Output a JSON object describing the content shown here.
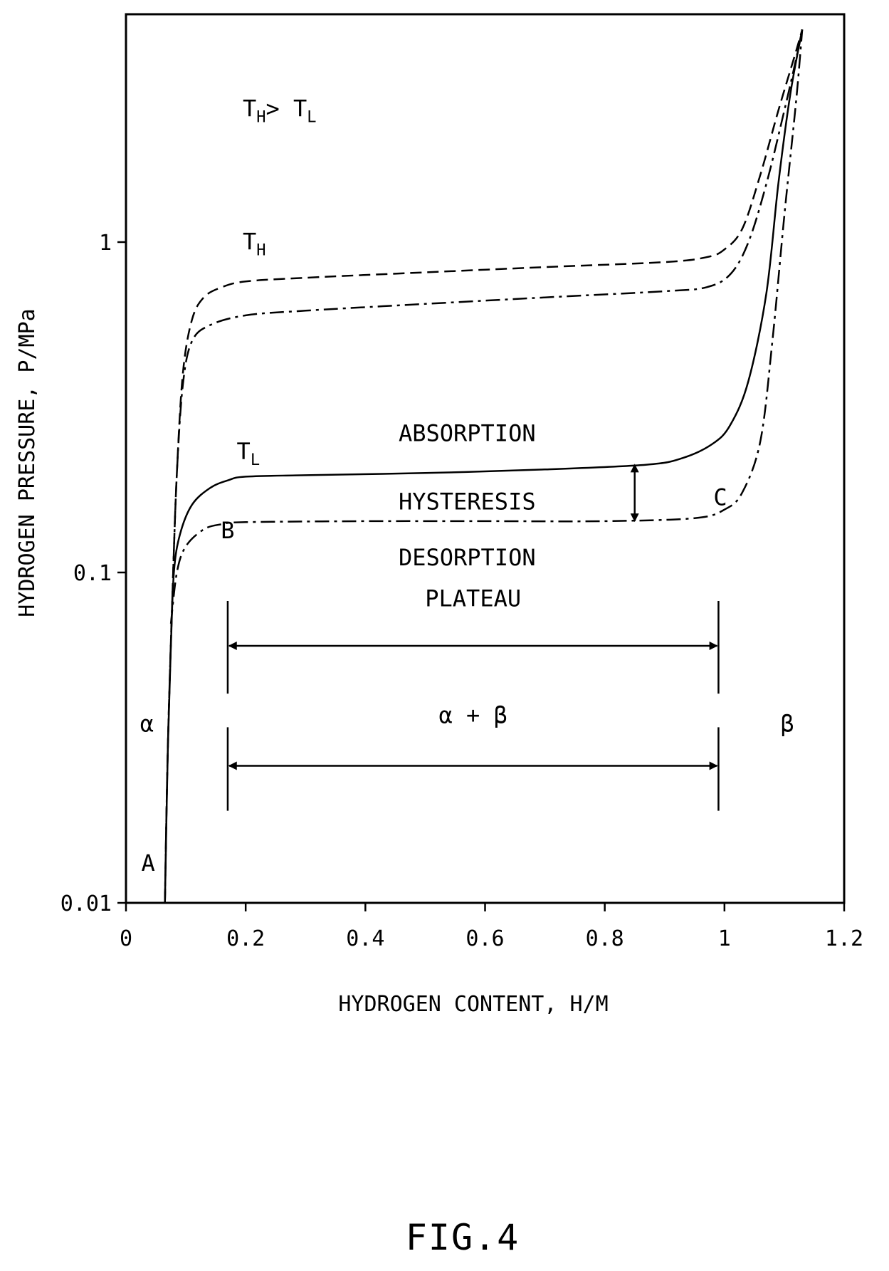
{
  "chart_data": {
    "type": "line",
    "title": "",
    "xlabel": "HYDROGEN CONTENT, H/M",
    "ylabel": "HYDROGEN PRESSURE, P/MPa",
    "xlim": [
      0,
      1.2
    ],
    "ylim": [
      0.01,
      4.4
    ],
    "yscale": "log",
    "grid": false,
    "legend": "none",
    "x_ticks": [
      0,
      0.2,
      0.4,
      0.6,
      0.8,
      1,
      1.2
    ],
    "x_tick_labels": [
      "0",
      "0.2",
      "0.4",
      "0.6",
      "0.8",
      "1",
      "1.2"
    ],
    "y_ticks": [
      0.01,
      0.1,
      1
    ],
    "y_tick_labels": [
      "0.01",
      "0.1",
      "1"
    ],
    "series": [
      {
        "style": "dashed",
        "points": [
          [
            0.065,
            0.01
          ],
          [
            0.07,
            0.03
          ],
          [
            0.078,
            0.09
          ],
          [
            0.085,
            0.2
          ],
          [
            0.095,
            0.4
          ],
          [
            0.11,
            0.58
          ],
          [
            0.13,
            0.68
          ],
          [
            0.16,
            0.73
          ],
          [
            0.2,
            0.76
          ],
          [
            0.3,
            0.78
          ],
          [
            0.5,
            0.81
          ],
          [
            0.7,
            0.84
          ],
          [
            0.9,
            0.87
          ],
          [
            0.97,
            0.9
          ],
          [
            1.0,
            0.95
          ],
          [
            1.03,
            1.1
          ],
          [
            1.06,
            1.6
          ],
          [
            1.09,
            2.5
          ],
          [
            1.12,
            3.8
          ],
          [
            1.13,
            4.4
          ]
        ]
      },
      {
        "style": "dash-dot",
        "points": [
          [
            0.065,
            0.01
          ],
          [
            0.07,
            0.03
          ],
          [
            0.078,
            0.09
          ],
          [
            0.085,
            0.2
          ],
          [
            0.095,
            0.37
          ],
          [
            0.11,
            0.5
          ],
          [
            0.14,
            0.56
          ],
          [
            0.2,
            0.6
          ],
          [
            0.3,
            0.62
          ],
          [
            0.5,
            0.65
          ],
          [
            0.7,
            0.68
          ],
          [
            0.9,
            0.71
          ],
          [
            0.97,
            0.73
          ],
          [
            1.01,
            0.8
          ],
          [
            1.04,
            1.0
          ],
          [
            1.07,
            1.5
          ],
          [
            1.1,
            2.5
          ],
          [
            1.12,
            3.6
          ],
          [
            1.13,
            4.4
          ]
        ]
      },
      {
        "style": "solid",
        "points": [
          [
            0.065,
            0.01
          ],
          [
            0.07,
            0.03
          ],
          [
            0.075,
            0.06
          ],
          [
            0.08,
            0.1
          ],
          [
            0.09,
            0.13
          ],
          [
            0.11,
            0.16
          ],
          [
            0.14,
            0.18
          ],
          [
            0.17,
            0.19
          ],
          [
            0.2,
            0.195
          ],
          [
            0.3,
            0.197
          ],
          [
            0.5,
            0.2
          ],
          [
            0.7,
            0.205
          ],
          [
            0.87,
            0.212
          ],
          [
            0.93,
            0.222
          ],
          [
            0.98,
            0.245
          ],
          [
            1.01,
            0.28
          ],
          [
            1.04,
            0.38
          ],
          [
            1.07,
            0.7
          ],
          [
            1.09,
            1.5
          ],
          [
            1.11,
            2.8
          ],
          [
            1.13,
            4.4
          ]
        ]
      },
      {
        "style": "dash-dot",
        "points": [
          [
            0.075,
            0.07
          ],
          [
            0.085,
            0.1
          ],
          [
            0.1,
            0.12
          ],
          [
            0.13,
            0.135
          ],
          [
            0.16,
            0.14
          ],
          [
            0.2,
            0.142
          ],
          [
            0.4,
            0.143
          ],
          [
            0.6,
            0.143
          ],
          [
            0.8,
            0.143
          ],
          [
            0.95,
            0.146
          ],
          [
            1.0,
            0.155
          ],
          [
            1.03,
            0.175
          ],
          [
            1.06,
            0.25
          ],
          [
            1.08,
            0.5
          ],
          [
            1.1,
            1.2
          ],
          [
            1.12,
            2.7
          ],
          [
            1.13,
            4.4
          ]
        ]
      }
    ],
    "annotations": [
      {
        "text": "T",
        "sub": "H",
        "rest": "> T",
        "sub2": "L",
        "x": 0.195,
        "y": 2.4
      },
      {
        "text": "T",
        "sub": "H",
        "x": 0.195,
        "y": 0.95
      },
      {
        "text": "T",
        "sub": "L",
        "x": 0.185,
        "y": 0.22
      },
      {
        "text": "ABSORPTION",
        "x": 0.57,
        "y": 0.25
      },
      {
        "text": "HYSTERESIS",
        "x": 0.57,
        "y": 0.155
      },
      {
        "text": "DESORPTION",
        "x": 0.57,
        "y": 0.105
      },
      {
        "text": "PLATEAU",
        "x": 0.58,
        "y": 0.079
      },
      {
        "text": "α + β",
        "x": 0.58,
        "y": 0.035
      },
      {
        "text": "α",
        "x": 0.035,
        "y": 0.033
      },
      {
        "text": "β",
        "x": 1.105,
        "y": 0.033
      },
      {
        "text": "A",
        "x": 0.037,
        "y": 0.0125
      },
      {
        "text": "B",
        "x": 0.17,
        "y": 0.127
      },
      {
        "text": "C",
        "x": 0.993,
        "y": 0.16
      }
    ],
    "range_markers": [
      {
        "x_start": 0.17,
        "x_end": 0.99,
        "y": 0.06,
        "y_top": 0.082,
        "y_bottom": 0.043
      },
      {
        "x_start": 0.17,
        "x_end": 0.99,
        "y": 0.026,
        "y_top": 0.034,
        "y_bottom": 0.019
      }
    ],
    "hysteresis_arrow": {
      "x": 0.85,
      "y_top": 0.212,
      "y_bottom": 0.143
    }
  },
  "caption": "FIG.4"
}
